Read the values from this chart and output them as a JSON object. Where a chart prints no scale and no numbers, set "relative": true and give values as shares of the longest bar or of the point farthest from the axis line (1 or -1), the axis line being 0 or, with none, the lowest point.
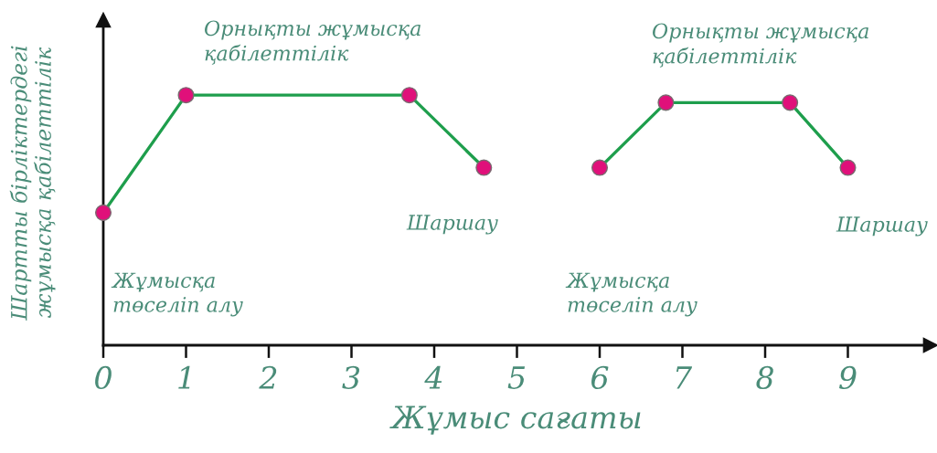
{
  "chart_data": {
    "type": "line",
    "xlabel": "Жұмыс сағаты",
    "ylabel": "Шартты бірліктердегі\nжұмысқа қабілеттілік",
    "relative": true,
    "xlim": [
      0,
      10
    ],
    "xticks": [
      0,
      1,
      2,
      3,
      4,
      5,
      6,
      7,
      8,
      9
    ],
    "tick_labels": "x",
    "marker": "circle",
    "line_style": "solid",
    "annotations": [
      "Орнықты жұмысқа\nқабілеттілік",
      "Шаршау",
      "Жұмысқа\nтөселіп алу",
      "Орнықты жұмысқа\nқабілеттілік",
      "Шаршау",
      "Жұмысқа\nтөселіп алу"
    ],
    "series": [
      {
        "x": [
          0,
          1,
          3.7,
          4.6
        ],
        "values": [
          0.53,
          1,
          1,
          0.71
        ],
        "color": "#1e9e4c",
        "colors": [
          "#e0107a",
          "#e0107a",
          "#e0107a",
          "#e0107a"
        ]
      },
      {
        "x": [
          6,
          6.8,
          8.3,
          9
        ],
        "values": [
          0.71,
          0.97,
          0.97,
          0.71
        ],
        "color": "#1e9e4c",
        "colors": [
          "#e0107a",
          "#e0107a",
          "#e0107a",
          "#e0107a"
        ]
      }
    ]
  }
}
